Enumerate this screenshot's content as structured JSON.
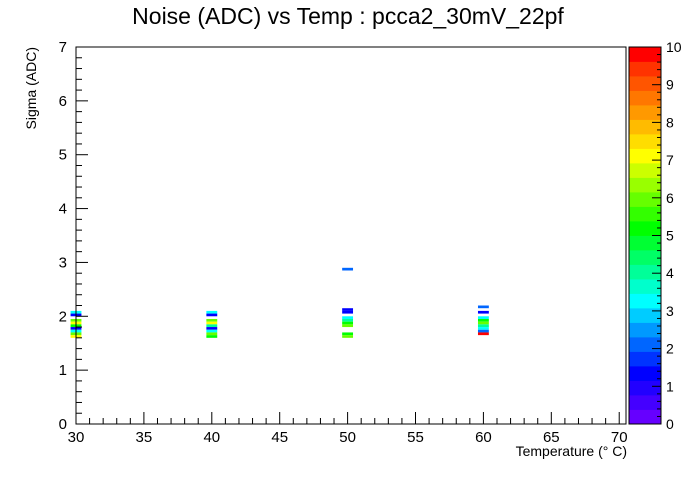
{
  "chart_data": {
    "type": "heatmap",
    "title": "Noise (ADC) vs Temp : pcca2_30mV_22pf",
    "xlabel": "Temperature (° C)",
    "ylabel": "Sigma (ADC)",
    "xlim": [
      30,
      70.5
    ],
    "ylim": [
      0,
      7
    ],
    "x_ticks": [
      30,
      35,
      40,
      45,
      50,
      55,
      60,
      65,
      70
    ],
    "y_ticks": [
      0,
      1,
      2,
      3,
      4,
      5,
      6,
      7
    ],
    "z_range": [
      0,
      10
    ],
    "z_ticks": [
      0,
      1,
      2,
      3,
      4,
      5,
      6,
      7,
      8,
      9,
      10
    ],
    "bin_width_x": 0.8,
    "bin_height_y": 0.05,
    "colors": [
      "#6600ff",
      "#4400ff",
      "#2200ff",
      "#0000ff",
      "#0033ff",
      "#0066ff",
      "#0099ff",
      "#00ccff",
      "#00ffff",
      "#00ffcc",
      "#00ff99",
      "#00ff66",
      "#00ff33",
      "#00ff00",
      "#33ff00",
      "#66ff00",
      "#99ff00",
      "#ccff00",
      "#ffff00",
      "#ffdd00",
      "#ffbb00",
      "#ff9900",
      "#ff7700",
      "#ff5500",
      "#ff3300",
      "#ff0000"
    ],
    "cells": [
      {
        "x": 30,
        "y": 2.05,
        "z": 3
      },
      {
        "x": 30,
        "y": 2.0,
        "z": 1
      },
      {
        "x": 30,
        "y": 1.9,
        "z": 6
      },
      {
        "x": 30,
        "y": 1.85,
        "z": 7
      },
      {
        "x": 30,
        "y": 1.8,
        "z": 5
      },
      {
        "x": 30,
        "y": 1.75,
        "z": 1
      },
      {
        "x": 30,
        "y": 1.7,
        "z": 3
      },
      {
        "x": 30,
        "y": 1.65,
        "z": 6
      },
      {
        "x": 30,
        "y": 1.6,
        "z": 7
      },
      {
        "x": 40,
        "y": 2.05,
        "z": 3
      },
      {
        "x": 40,
        "y": 2.0,
        "z": 1
      },
      {
        "x": 40,
        "y": 1.9,
        "z": 6
      },
      {
        "x": 40,
        "y": 1.85,
        "z": 7
      },
      {
        "x": 40,
        "y": 1.8,
        "z": 4
      },
      {
        "x": 40,
        "y": 1.75,
        "z": 1
      },
      {
        "x": 40,
        "y": 1.7,
        "z": 3
      },
      {
        "x": 40,
        "y": 1.65,
        "z": 6
      },
      {
        "x": 40,
        "y": 1.6,
        "z": 5
      },
      {
        "x": 50,
        "y": 2.85,
        "z": 2
      },
      {
        "x": 50,
        "y": 2.1,
        "z": 1
      },
      {
        "x": 50,
        "y": 2.05,
        "z": 1
      },
      {
        "x": 50,
        "y": 1.95,
        "z": 3
      },
      {
        "x": 50,
        "y": 1.9,
        "z": 4
      },
      {
        "x": 50,
        "y": 1.85,
        "z": 5
      },
      {
        "x": 50,
        "y": 1.8,
        "z": 6
      },
      {
        "x": 50,
        "y": 1.65,
        "z": 5
      },
      {
        "x": 50,
        "y": 1.6,
        "z": 6
      },
      {
        "x": 60,
        "y": 2.15,
        "z": 2
      },
      {
        "x": 60,
        "y": 2.05,
        "z": 1
      },
      {
        "x": 60,
        "y": 1.95,
        "z": 3
      },
      {
        "x": 60,
        "y": 1.9,
        "z": 5
      },
      {
        "x": 60,
        "y": 1.85,
        "z": 6
      },
      {
        "x": 60,
        "y": 1.8,
        "z": 4
      },
      {
        "x": 60,
        "y": 1.75,
        "z": 3
      },
      {
        "x": 60,
        "y": 1.7,
        "z": 2
      },
      {
        "x": 60,
        "y": 1.65,
        "z": 10
      }
    ]
  }
}
